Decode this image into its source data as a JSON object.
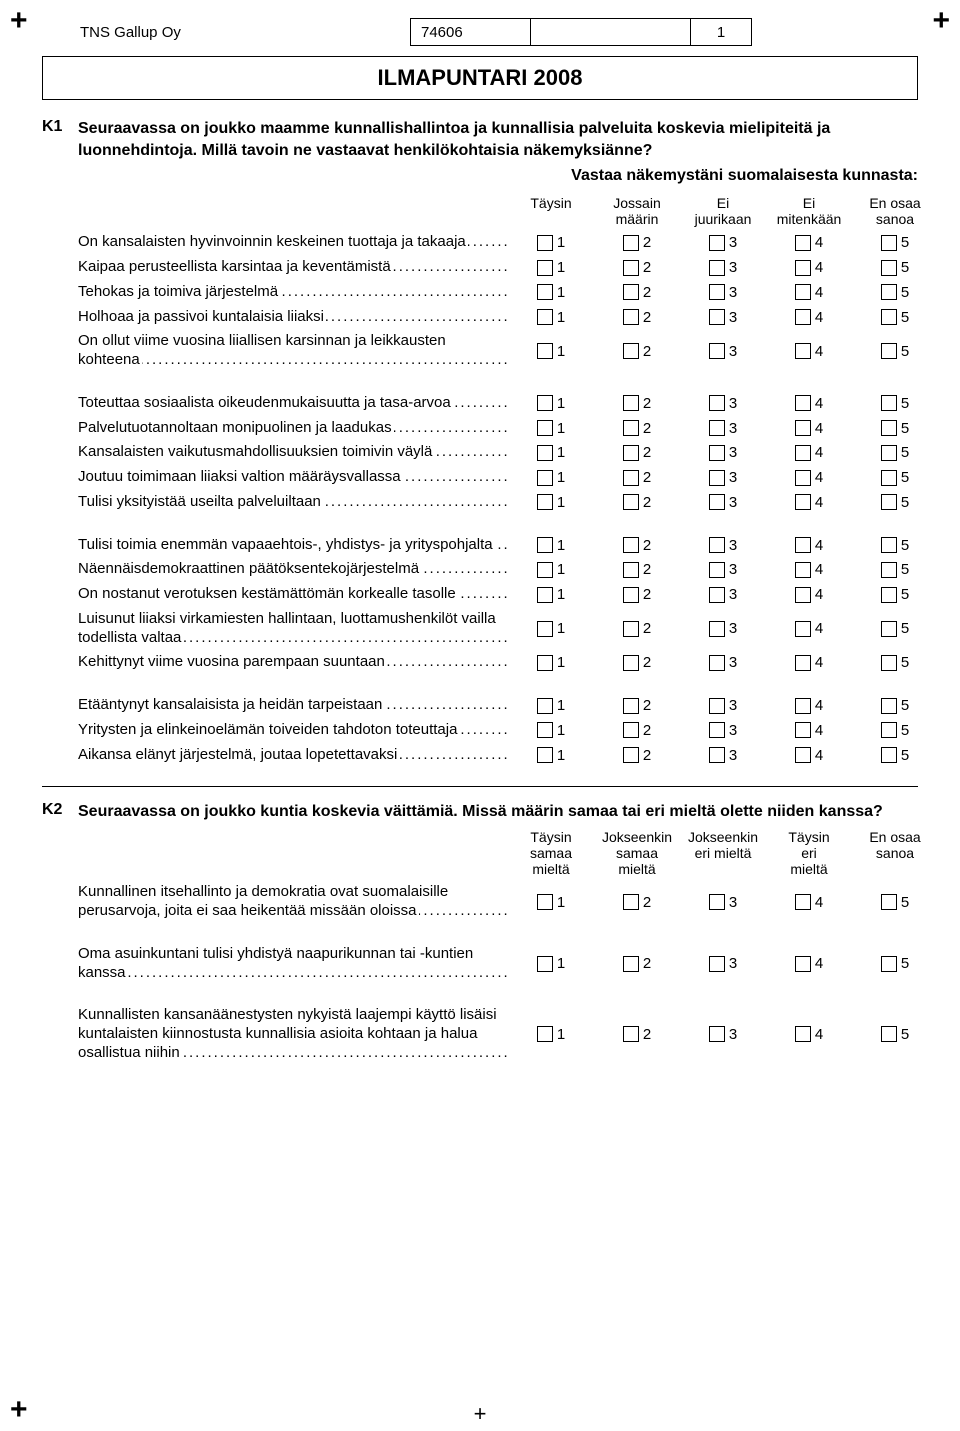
{
  "crops": {
    "plus": "+"
  },
  "header": {
    "company": "TNS Gallup Oy",
    "code": "74606",
    "page": "1"
  },
  "title": "ILMAPUNTARI 2008",
  "k1": {
    "num": "K1",
    "text": "Seuraavassa on joukko maamme kunnallishallintoa ja kunnallisia palveluita koskevia mielipiteitä ja luonnehdintoja. Millä tavoin ne vastaavat henkilökohtaisia näkemyksiänne?",
    "subhead": "Vastaa näkemystäni suomalaisesta kunnasta:",
    "columns": [
      "Täysin",
      "Jossain\nmäärin",
      "Ei\njuurikaan",
      "Ei\nmitenkään",
      "En osaa\nsanoa"
    ],
    "values": [
      "1",
      "2",
      "3",
      "4",
      "5"
    ],
    "groups": [
      [
        "On kansalaisten hyvinvoinnin keskeinen tuottaja ja takaaja",
        "Kaipaa perusteellista karsintaa ja keventämistä",
        "Tehokas ja toimiva järjestelmä",
        "Holhoaa ja passivoi kuntalaisia liiaksi",
        "On ollut viime vuosina liiallisen karsinnan ja leikkausten kohteena"
      ],
      [
        "Toteuttaa sosiaalista oikeudenmukaisuutta ja tasa-arvoa",
        "Palvelutuotannoltaan monipuolinen ja laadukas",
        "Kansalaisten vaikutusmahdollisuuksien toimivin väylä",
        "Joutuu toimimaan liiaksi valtion määräysvallassa",
        "Tulisi yksityistää useilta palveluiltaan"
      ],
      [
        "Tulisi toimia enemmän vapaaehtois-, yhdistys- ja yrityspohjalta",
        "Näennäisdemokraattinen päätöksentekojärjestelmä",
        "On nostanut verotuksen kestämättömän korkealle tasolle",
        "Luisunut liiaksi virkamiesten hallintaan, luottamushenkilöt vailla todellista valtaa",
        "Kehittynyt viime vuosina parempaan suuntaan"
      ],
      [
        "Etääntynyt kansalaisista ja heidän tarpeistaan",
        "Yritysten ja elinkeinoelämän toiveiden tahdoton toteuttaja",
        "Aikansa elänyt järjestelmä, joutaa lopetettavaksi"
      ]
    ]
  },
  "k2": {
    "num": "K2",
    "text": "Seuraavassa on joukko kuntia koskevia väittämiä. Missä määrin samaa tai eri mieltä olette niiden kanssa?",
    "columns": [
      "Täysin\nsamaa\nmieltä",
      "Jokseenkin\nsamaa\nmieltä",
      "Jokseenkin\neri mieltä",
      "Täysin\neri\nmieltä",
      "En osaa\nsanoa"
    ],
    "values": [
      "1",
      "2",
      "3",
      "4",
      "5"
    ],
    "groups": [
      [
        "Kunnallinen itsehallinto ja demokratia ovat suomalaisille perusarvoja, joita ei saa heikentää missään oloissa"
      ],
      [
        "Oma asuinkuntani tulisi yhdistyä naapurikunnan tai -kuntien kanssa"
      ],
      [
        "Kunnallisten kansanäänestysten nykyistä laajempi käyttö lisäisi kuntalaisten kiinnostusta kunnallisia asioita kohtaan ja halua osallistua niihin"
      ]
    ]
  }
}
